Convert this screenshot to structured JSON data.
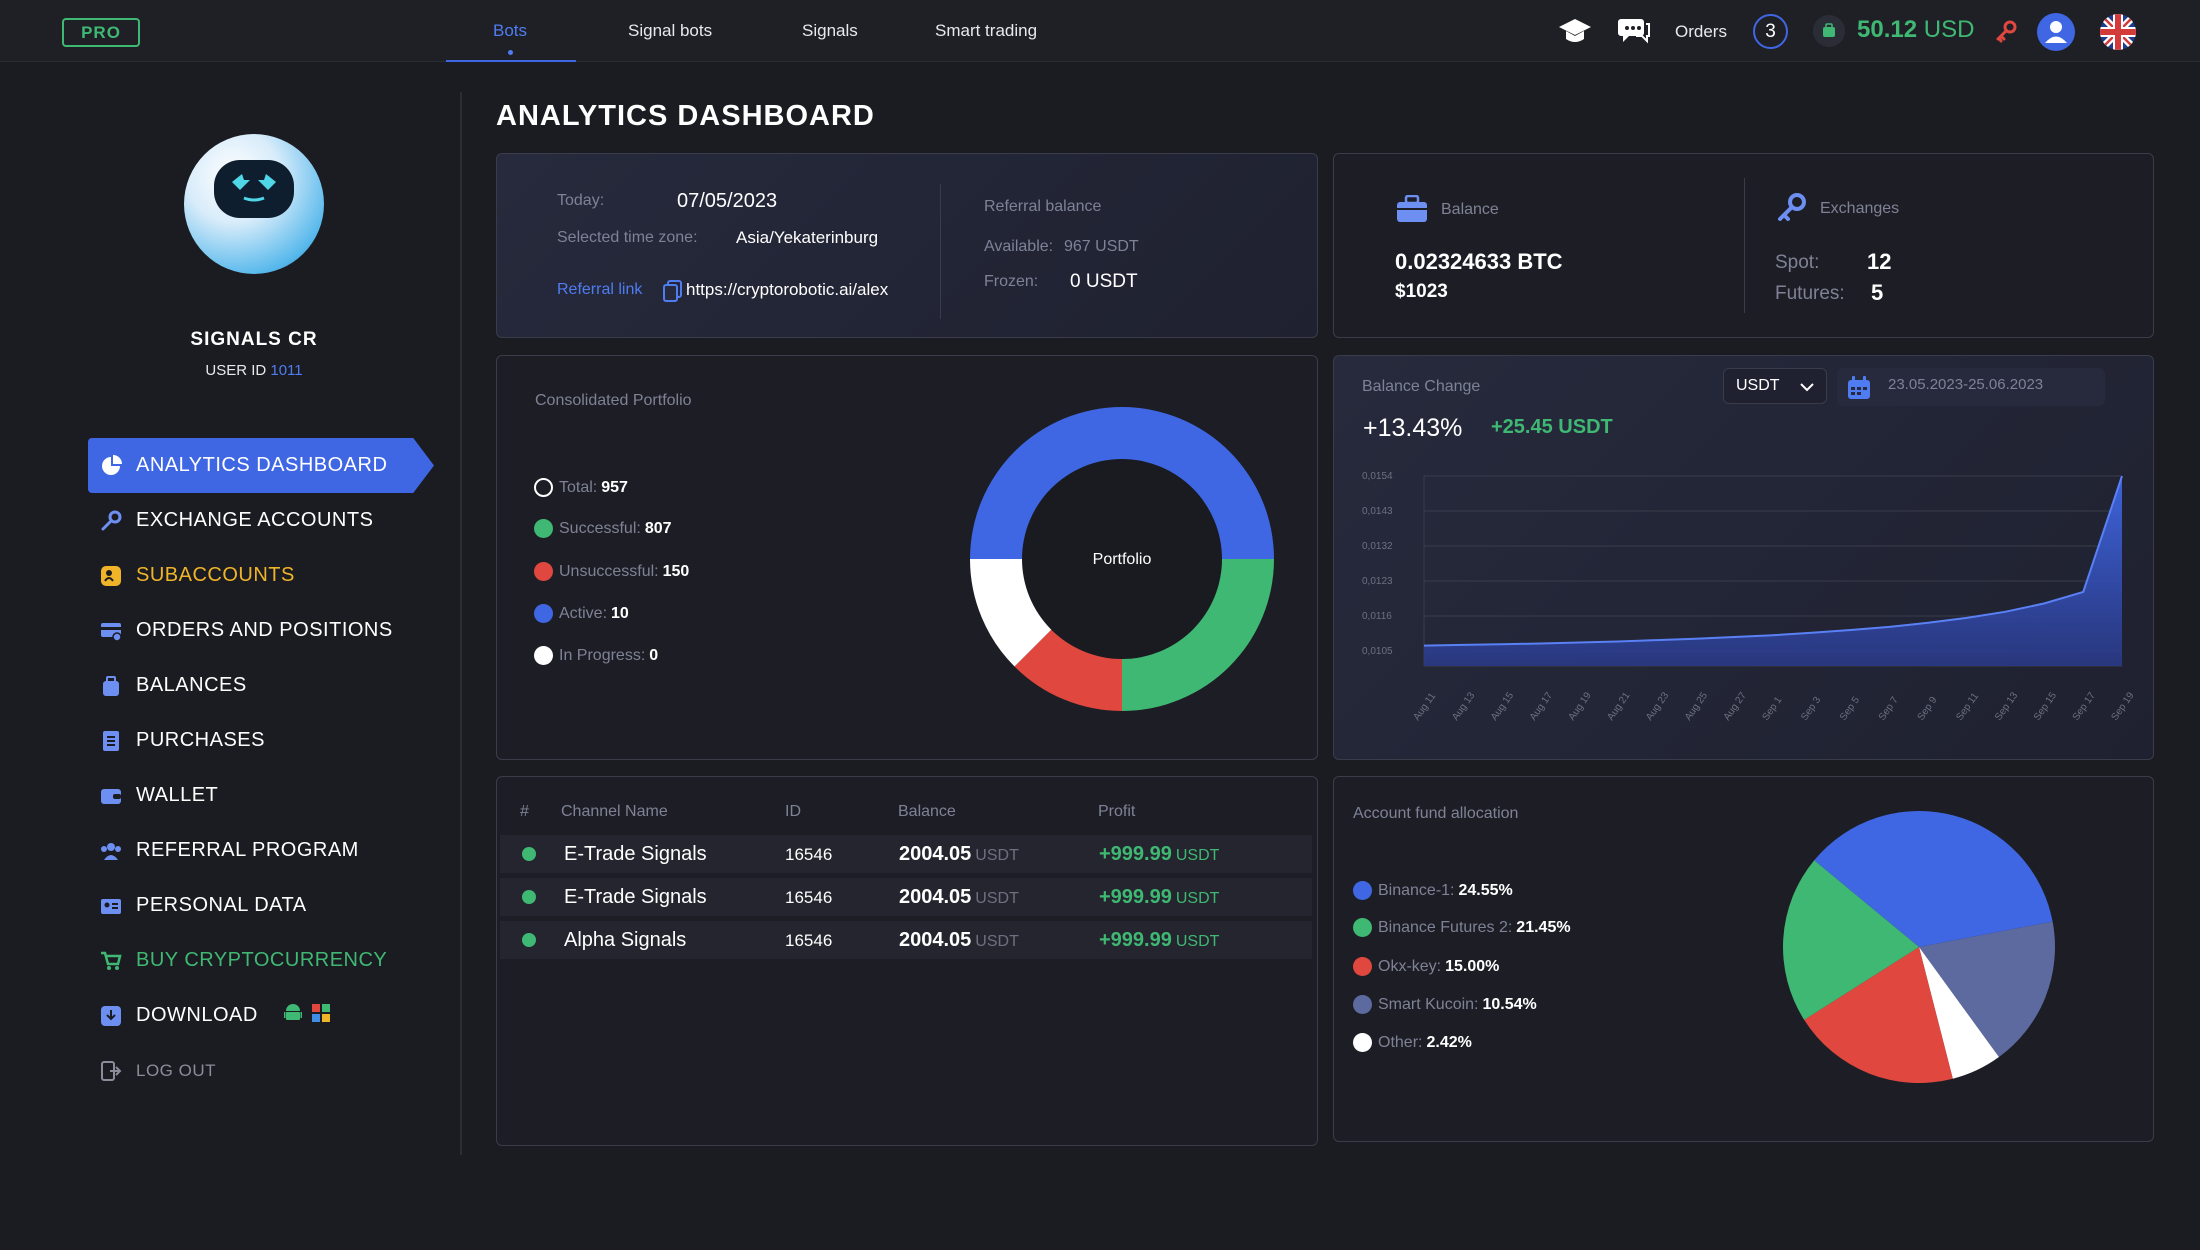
{
  "topbar": {
    "pro_badge": "PRO",
    "tabs": [
      {
        "label": "Bots",
        "active": true
      },
      {
        "label": "Signal bots",
        "active": false
      },
      {
        "label": "Signals",
        "active": false
      },
      {
        "label": "Smart trading",
        "active": false
      }
    ],
    "orders_label": "Orders",
    "orders_count": "3",
    "balance_amount": "50.12",
    "balance_currency": "USD"
  },
  "sidebar": {
    "user_name": "SIGNALS CR",
    "user_id_label": "USER ID",
    "user_id_value": "1011",
    "items": [
      {
        "label": "ANALYTICS DASHBOARD",
        "icon": "pie-chart-icon"
      },
      {
        "label": "EXCHANGE ACCOUNTS",
        "icon": "key-icon"
      },
      {
        "label": "SUBACCOUNTS",
        "icon": "subaccounts-icon"
      },
      {
        "label": "ORDERS AND POSITIONS",
        "icon": "orders-icon"
      },
      {
        "label": "BALANCES",
        "icon": "wallet-bag-icon"
      },
      {
        "label": "PURCHASES",
        "icon": "list-icon"
      },
      {
        "label": "WALLET",
        "icon": "wallet-icon"
      },
      {
        "label": "REFERRAL PROGRAM",
        "icon": "people-icon"
      },
      {
        "label": "PERSONAL DATA",
        "icon": "id-card-icon"
      },
      {
        "label": "BUY CRYPTOCURRENCY",
        "icon": "cart-icon"
      },
      {
        "label": "DOWNLOAD",
        "icon": "download-icon"
      },
      {
        "label": "LOG OUT",
        "icon": "logout-icon"
      }
    ]
  },
  "main": {
    "title": "ANALYTICS DASHBOARD",
    "info": {
      "today_label": "Today:",
      "today_value": "07/05/2023",
      "tz_label": "Selected time zone:",
      "tz_value": "Asia/Yekaterinburg",
      "ref_link_label": "Referral link",
      "ref_link_value": "https://cryptorobotic.ai/alex",
      "ref_balance_label": "Referral balance",
      "available_label": "Available:",
      "available_value": "967 USDT",
      "frozen_label": "Frozen:",
      "frozen_value": "0 USDT"
    },
    "balance_card": {
      "balance_label": "Balance",
      "btc_value": "0.02324633 BTC",
      "usd_value": "$1023",
      "exchanges_label": "Exchanges",
      "spot_label": "Spot:",
      "spot_value": "12",
      "futures_label": "Futures:",
      "futures_value": "5"
    },
    "portfolio": {
      "title": "Consolidated Portfolio",
      "center_label": "Portfolio",
      "items": [
        {
          "label": "Total:",
          "value": "957"
        },
        {
          "label": "Successful:",
          "value": "807"
        },
        {
          "label": "Unsuccessful:",
          "value": "150"
        },
        {
          "label": "Active:",
          "value": "10"
        },
        {
          "label": "In Progress:",
          "value": "0"
        }
      ]
    },
    "balance_change": {
      "title": "Balance Change",
      "percent": "+13.43%",
      "amount": "+25.45 USDT",
      "currency_select": "USDT",
      "date_range": "23.05.2023-25.06.2023"
    },
    "table": {
      "headers": [
        "#",
        "Channel Name",
        "ID",
        "Balance",
        "Profit"
      ],
      "rows": [
        {
          "name": "E-Trade Signals",
          "id": "16546",
          "balance": "2004.05",
          "balance_unit": "USDT",
          "profit": "+999.99",
          "profit_unit": "USDT"
        },
        {
          "name": "E-Trade Signals",
          "id": "16546",
          "balance": "2004.05",
          "balance_unit": "USDT",
          "profit": "+999.99",
          "profit_unit": "USDT"
        },
        {
          "name": "Alpha Signals",
          "id": "16546",
          "balance": "2004.05",
          "balance_unit": "USDT",
          "profit": "+999.99",
          "profit_unit": "USDT"
        }
      ]
    },
    "allocation": {
      "title": "Account fund allocation",
      "items": [
        {
          "label": "Binance-1:",
          "value": "24.55%"
        },
        {
          "label": "Binance Futures 2:",
          "value": "21.45%"
        },
        {
          "label": "Okx-key:",
          "value": "15.00%"
        },
        {
          "label": "Smart Kucoin:",
          "value": "10.54%"
        },
        {
          "label": "Other:",
          "value": "2.42%"
        }
      ]
    }
  },
  "colors": {
    "accent": "#3f67e4",
    "green": "#3fb873",
    "red": "#e0483f",
    "yellow": "#f0b429",
    "slate": "#5d6aa0",
    "white": "#ffffff"
  },
  "chart_data": [
    {
      "type": "pie",
      "title": "",
      "categories": [
        "Successful",
        "Unsuccessful",
        "Active",
        "In Progress"
      ],
      "values": [
        807,
        150,
        10,
        0
      ],
      "style": "donut",
      "center_label": "Portfolio"
    },
    {
      "type": "area",
      "title": "Balance Change",
      "x": [
        "Aug 11",
        "Aug 13",
        "Aug 15",
        "Aug 17",
        "Aug 19",
        "Aug 21",
        "Aug 23",
        "Aug 25",
        "Aug 27",
        "Sep 1",
        "Sep 3",
        "Sep 5",
        "Sep 7",
        "Sep 9",
        "Sep 11",
        "Sep 13",
        "Sep 15",
        "Sep 17",
        "Sep 19"
      ],
      "y_ticks": [
        "0,0154",
        "0,0143",
        "0,0132",
        "0,0123",
        "0,0116",
        "0,0105"
      ],
      "values": [
        0.0105,
        0.01052,
        0.01054,
        0.01056,
        0.01059,
        0.01062,
        0.01066,
        0.0107,
        0.01075,
        0.0108,
        0.01087,
        0.01095,
        0.01104,
        0.01116,
        0.0113,
        0.01148,
        0.01172,
        0.01205,
        0.0154
      ],
      "ylim": [
        0.0102,
        0.0154
      ],
      "grid": true
    },
    {
      "type": "pie",
      "title": "Account fund allocation",
      "categories": [
        "Binance-1",
        "Binance Futures 2",
        "Okx-key",
        "Smart Kucoin",
        "Other"
      ],
      "values": [
        24.55,
        21.45,
        15.0,
        10.54,
        2.42
      ]
    }
  ]
}
